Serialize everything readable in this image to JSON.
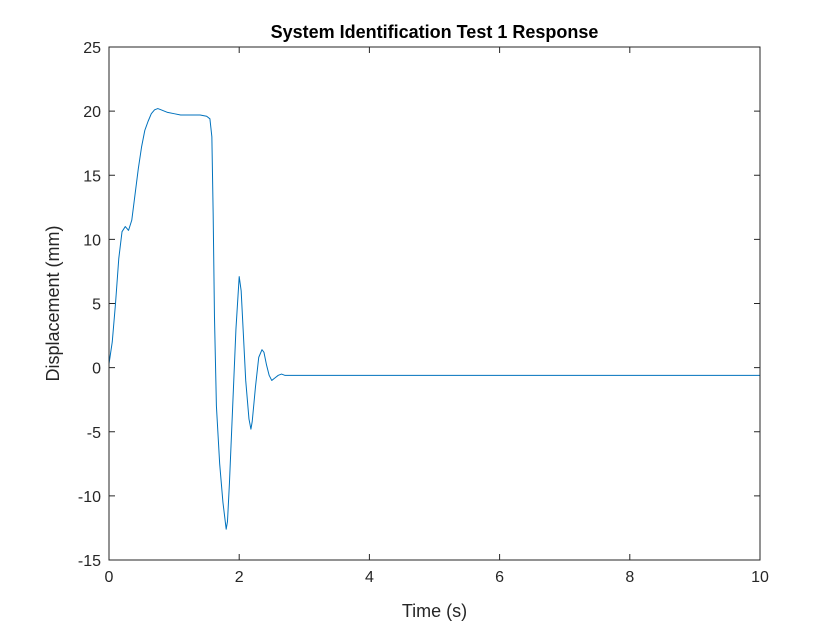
{
  "chart_data": {
    "type": "line",
    "title": "System Identification Test 1 Response",
    "xlabel": "Time (s)",
    "ylabel": "Displacement (mm)",
    "xlim": [
      0,
      10
    ],
    "ylim": [
      -15,
      25
    ],
    "xticks": [
      0,
      2,
      4,
      6,
      8,
      10
    ],
    "yticks": [
      -15,
      -10,
      -5,
      0,
      5,
      10,
      15,
      20,
      25
    ],
    "xtick_labels": [
      "0",
      "2",
      "4",
      "6",
      "8",
      "10"
    ],
    "ytick_labels": [
      "-15",
      "-10",
      "-5",
      "0",
      "5",
      "10",
      "15",
      "20",
      "25"
    ],
    "grid": false,
    "legend": "none",
    "series": [
      {
        "color": "#0072bd",
        "x": [
          0.0,
          0.05,
          0.1,
          0.15,
          0.2,
          0.25,
          0.3,
          0.35,
          0.4,
          0.45,
          0.5,
          0.55,
          0.6,
          0.65,
          0.7,
          0.75,
          0.8,
          0.9,
          1.0,
          1.1,
          1.2,
          1.3,
          1.4,
          1.5,
          1.55,
          1.58,
          1.6,
          1.62,
          1.65,
          1.7,
          1.75,
          1.8,
          1.82,
          1.85,
          1.9,
          1.95,
          2.0,
          2.03,
          2.06,
          2.1,
          2.15,
          2.18,
          2.2,
          2.25,
          2.3,
          2.35,
          2.38,
          2.42,
          2.46,
          2.5,
          2.55,
          2.6,
          2.65,
          2.7,
          2.75,
          3.0,
          4.0,
          5.0,
          6.0,
          7.0,
          8.0,
          9.0,
          10.0
        ],
        "y": [
          0.3,
          2.0,
          5.0,
          8.5,
          10.6,
          11.0,
          10.7,
          11.5,
          13.5,
          15.5,
          17.2,
          18.5,
          19.2,
          19.8,
          20.1,
          20.2,
          20.1,
          19.9,
          19.8,
          19.7,
          19.7,
          19.7,
          19.7,
          19.6,
          19.4,
          18.0,
          12.0,
          4.0,
          -3.0,
          -7.5,
          -10.5,
          -12.6,
          -12.0,
          -9.0,
          -3.0,
          3.0,
          7.1,
          6.0,
          3.0,
          -1.0,
          -4.0,
          -4.8,
          -4.2,
          -1.5,
          0.8,
          1.4,
          1.2,
          0.2,
          -0.6,
          -1.0,
          -0.8,
          -0.6,
          -0.5,
          -0.6,
          -0.6,
          -0.6,
          -0.6,
          -0.6,
          -0.6,
          -0.6,
          -0.6,
          -0.6,
          -0.6
        ]
      }
    ]
  }
}
